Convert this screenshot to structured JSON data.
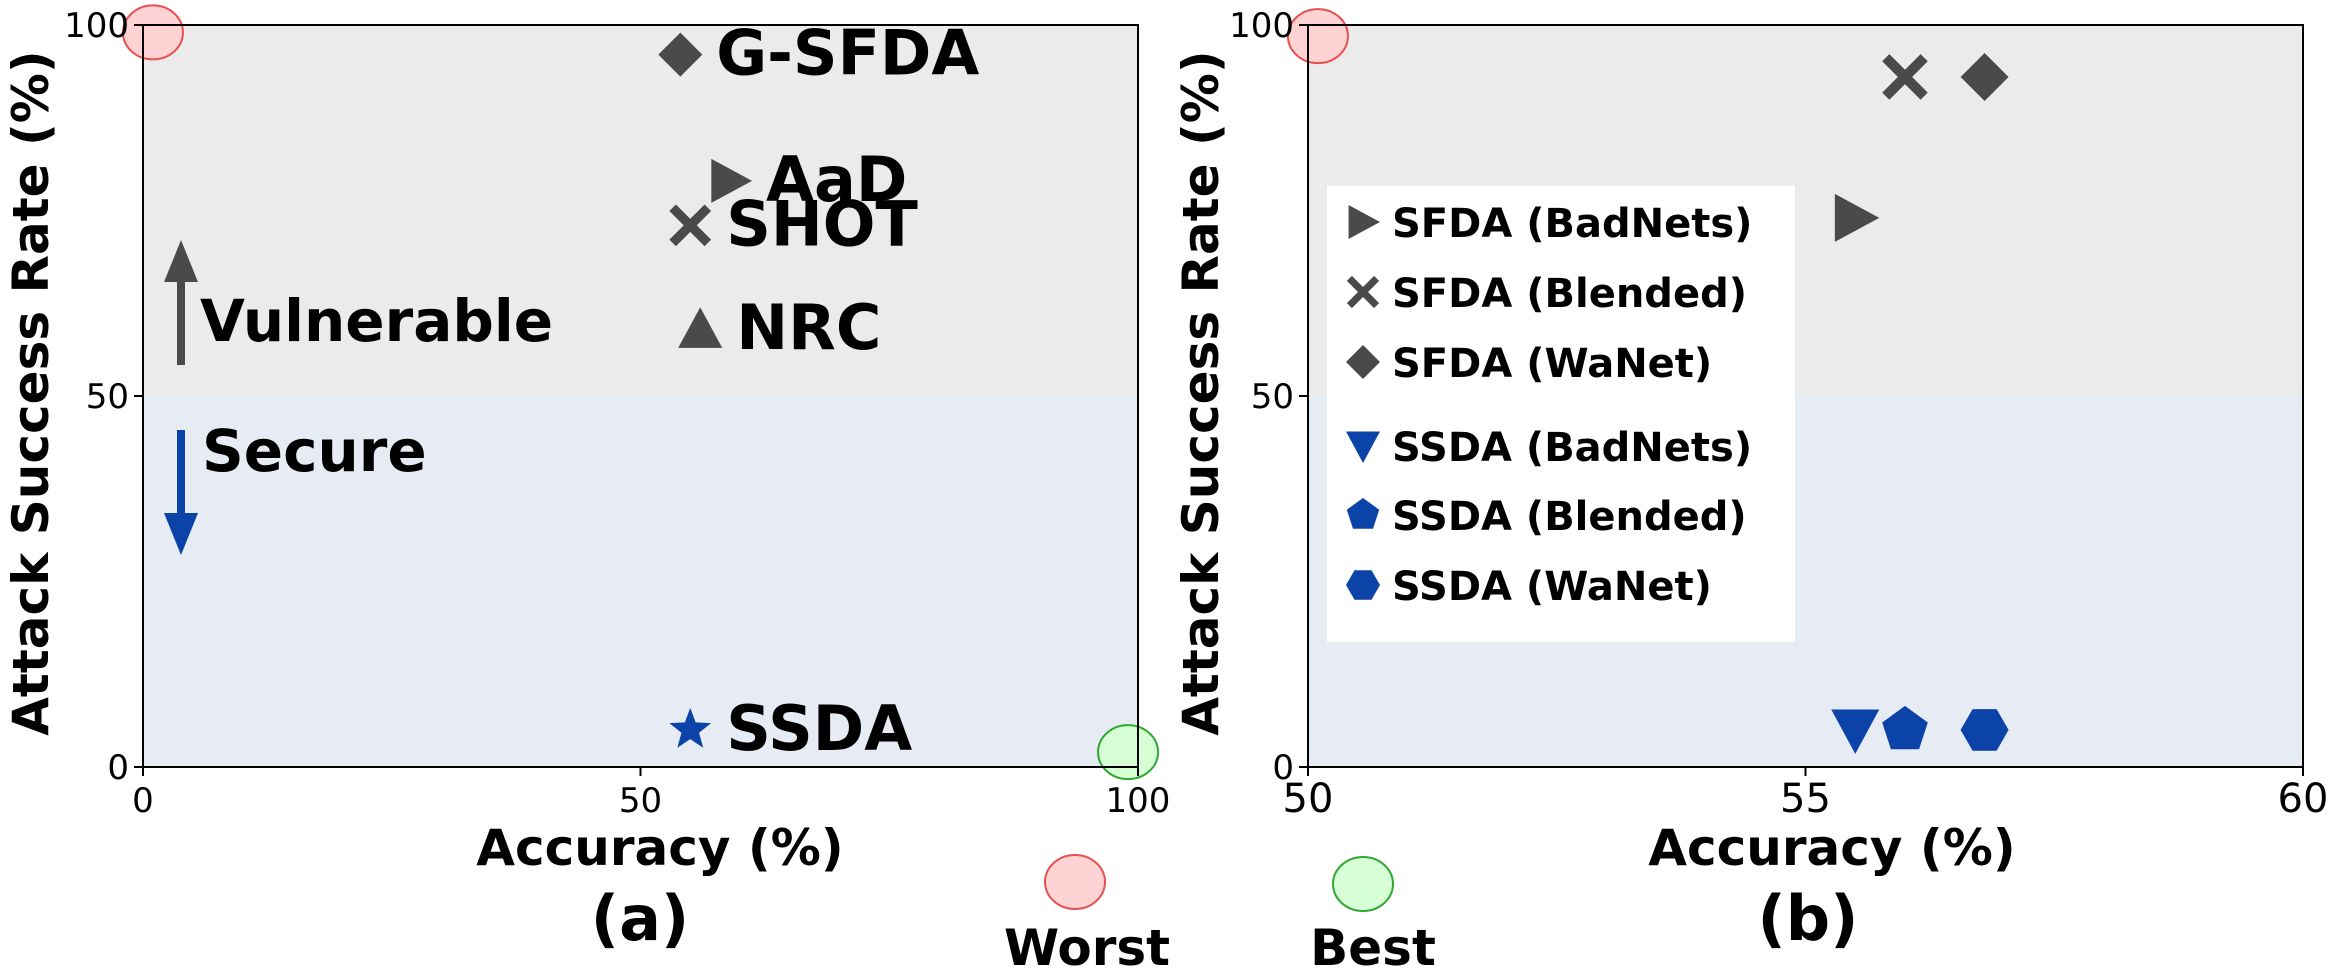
{
  "colors": {
    "vulnerable_band": "#ebebeb",
    "secure_band": "#e6ebf4",
    "sfda_marker": "#4a4a4a",
    "ssda_marker": "#0b43a8",
    "worst_fill": "#ffd3d3",
    "worst_edge": "#e85050",
    "best_fill": "#d6ffd6",
    "best_edge": "#2fa82f"
  },
  "chart_data": [
    {
      "type": "scatter",
      "panel_label": "(a)",
      "xlabel": "Accuracy (%)",
      "ylabel": "Attack Success Rate (%)",
      "xlim": [
        0,
        100
      ],
      "ylim": [
        0,
        100
      ],
      "xticks": [
        "0",
        "50",
        "100"
      ],
      "yticks": [
        "0",
        "50",
        "100"
      ],
      "regions": [
        {
          "name": "Vulnerable",
          "y_from": 50,
          "y_to": 100,
          "arrow": "up"
        },
        {
          "name": "Secure",
          "y_from": 0,
          "y_to": 50,
          "arrow": "down"
        }
      ],
      "points": [
        {
          "label": "G-SFDA",
          "x": 54,
          "y": 96,
          "marker": "diamond",
          "group": "sfda"
        },
        {
          "label": "AaD",
          "x": 59,
          "y": 79,
          "marker": "triangle-right",
          "group": "sfda"
        },
        {
          "label": "SHOT",
          "x": 55,
          "y": 73,
          "marker": "x",
          "group": "sfda"
        },
        {
          "label": "NRC",
          "x": 56,
          "y": 59,
          "marker": "triangle-up",
          "group": "sfda"
        },
        {
          "label": "SSDA",
          "x": 55,
          "y": 5,
          "marker": "star",
          "group": "ssda"
        }
      ],
      "reference_points": [
        {
          "name": "worst",
          "x": 1,
          "y": 99
        },
        {
          "name": "best",
          "x": 99,
          "y": 2
        }
      ]
    },
    {
      "type": "scatter",
      "panel_label": "(b)",
      "xlabel": "Accuracy (%)",
      "ylabel": "Attack Success Rate (%)",
      "xlim": [
        50,
        60
      ],
      "ylim": [
        0,
        100
      ],
      "xticks": [
        "50",
        "55",
        "60"
      ],
      "yticks": [
        "0",
        "50",
        "100"
      ],
      "legend_position": "center-left",
      "series": [
        {
          "name": "SFDA (BadNets)",
          "marker": "triangle-right",
          "group": "sfda",
          "x": 55.5,
          "y": 74
        },
        {
          "name": "SFDA (Blended)",
          "marker": "x",
          "group": "sfda",
          "x": 56.0,
          "y": 93
        },
        {
          "name": "SFDA (WaNet)",
          "marker": "diamond",
          "group": "sfda",
          "x": 56.8,
          "y": 93
        },
        {
          "name": "SSDA (BadNets)",
          "marker": "triangle-down",
          "group": "ssda",
          "x": 55.5,
          "y": 5
        },
        {
          "name": "SSDA (Blended)",
          "marker": "pentagon",
          "group": "ssda",
          "x": 56.0,
          "y": 5
        },
        {
          "name": "SSDA (WaNet)",
          "marker": "hexagon",
          "group": "ssda",
          "x": 56.8,
          "y": 5
        }
      ],
      "reference_points": [
        {
          "name": "worst",
          "x": 50.1,
          "y": 98.5
        }
      ]
    }
  ],
  "key": {
    "worst_label": "Worst",
    "best_label": "Best"
  }
}
